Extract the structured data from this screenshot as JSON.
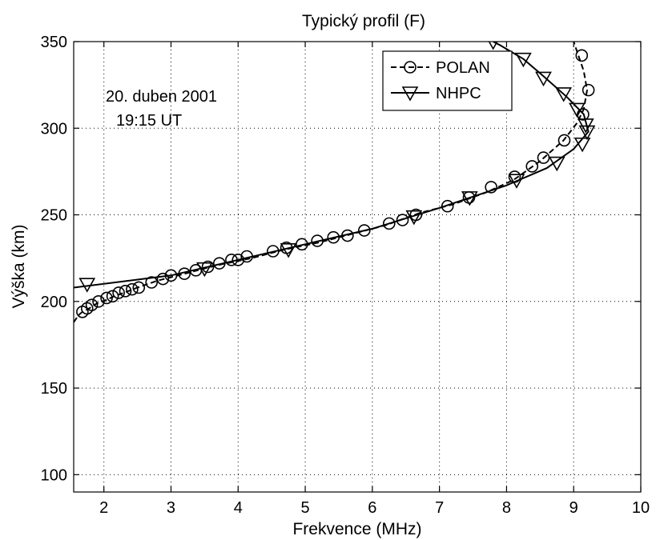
{
  "chart_data": {
    "type": "line",
    "title": "Typický profil (F)",
    "xlabel": "Frekvence (MHz)",
    "ylabel": "Výška (km)",
    "xlim": [
      1.55,
      10
    ],
    "ylim": [
      90,
      350
    ],
    "xticks": [
      2,
      3,
      4,
      5,
      6,
      7,
      8,
      9,
      10
    ],
    "yticks": [
      100,
      150,
      200,
      250,
      300,
      350
    ],
    "grid": true,
    "legend_position": "top-right",
    "annotation": [
      "20. duben 2001",
      "19:15 UT"
    ],
    "series": [
      {
        "name": "POLAN",
        "marker": "circle",
        "line": "dashed",
        "curve": [
          [
            1.55,
            188
          ],
          [
            1.62,
            192
          ],
          [
            1.68,
            194
          ],
          [
            1.78,
            196
          ],
          [
            1.9,
            199
          ],
          [
            2.05,
            201
          ],
          [
            2.15,
            203
          ],
          [
            2.3,
            205
          ],
          [
            2.5,
            208
          ],
          [
            2.8,
            212
          ],
          [
            3.2,
            216
          ],
          [
            3.7,
            221
          ],
          [
            4.2,
            225
          ],
          [
            4.7,
            230
          ],
          [
            5.2,
            234
          ],
          [
            5.7,
            239
          ],
          [
            6.2,
            244
          ],
          [
            6.7,
            251
          ],
          [
            7.2,
            256
          ],
          [
            7.7,
            263
          ],
          [
            8.1,
            270
          ],
          [
            8.5,
            281
          ],
          [
            8.85,
            293
          ],
          [
            9.05,
            303
          ],
          [
            9.15,
            311
          ],
          [
            9.2,
            322
          ],
          [
            9.15,
            333
          ],
          [
            9.07,
            342
          ],
          [
            9.0,
            350
          ]
        ],
        "points": [
          [
            1.68,
            194
          ],
          [
            1.75,
            196
          ],
          [
            1.82,
            198
          ],
          [
            1.92,
            200
          ],
          [
            2.04,
            202
          ],
          [
            2.13,
            203
          ],
          [
            2.22,
            205
          ],
          [
            2.32,
            206
          ],
          [
            2.42,
            207
          ],
          [
            2.52,
            208
          ],
          [
            2.71,
            211
          ],
          [
            2.88,
            213
          ],
          [
            3.0,
            215
          ],
          [
            3.2,
            216
          ],
          [
            3.37,
            218
          ],
          [
            3.55,
            220
          ],
          [
            3.72,
            222
          ],
          [
            3.9,
            224
          ],
          [
            4.0,
            224
          ],
          [
            4.13,
            226
          ],
          [
            4.52,
            229
          ],
          [
            4.72,
            231
          ],
          [
            4.95,
            233
          ],
          [
            5.18,
            235
          ],
          [
            5.42,
            237
          ],
          [
            5.63,
            238
          ],
          [
            5.88,
            241
          ],
          [
            6.25,
            245
          ],
          [
            6.45,
            247
          ],
          [
            6.65,
            250
          ],
          [
            7.12,
            255
          ],
          [
            7.44,
            260
          ],
          [
            7.77,
            266
          ],
          [
            8.12,
            272
          ],
          [
            8.38,
            278
          ],
          [
            8.55,
            283
          ],
          [
            8.86,
            293
          ],
          [
            9.14,
            308
          ],
          [
            9.22,
            322
          ],
          [
            9.12,
            342
          ]
        ]
      },
      {
        "name": "NHPC",
        "marker": "triangle-down",
        "line": "solid",
        "curve": [
          [
            1.55,
            208
          ],
          [
            3.0,
            215
          ],
          [
            4.0,
            224
          ],
          [
            5.0,
            233
          ],
          [
            6.0,
            242
          ],
          [
            7.0,
            254
          ],
          [
            8.0,
            267
          ],
          [
            8.6,
            277
          ],
          [
            9.0,
            288
          ],
          [
            9.22,
            298
          ],
          [
            9.15,
            308
          ],
          [
            8.9,
            318
          ],
          [
            8.55,
            330
          ],
          [
            8.25,
            340
          ],
          [
            7.9,
            348
          ],
          [
            7.8,
            350
          ]
        ],
        "points": [
          [
            1.75,
            210
          ],
          [
            3.5,
            219
          ],
          [
            4.75,
            230
          ],
          [
            6.62,
            249
          ],
          [
            7.45,
            260
          ],
          [
            8.15,
            270
          ],
          [
            8.75,
            280
          ],
          [
            9.13,
            291
          ],
          [
            9.2,
            298
          ],
          [
            9.18,
            302
          ],
          [
            9.05,
            311
          ],
          [
            8.85,
            320
          ],
          [
            8.55,
            329
          ],
          [
            8.25,
            340
          ],
          [
            7.8,
            350
          ]
        ]
      }
    ]
  }
}
